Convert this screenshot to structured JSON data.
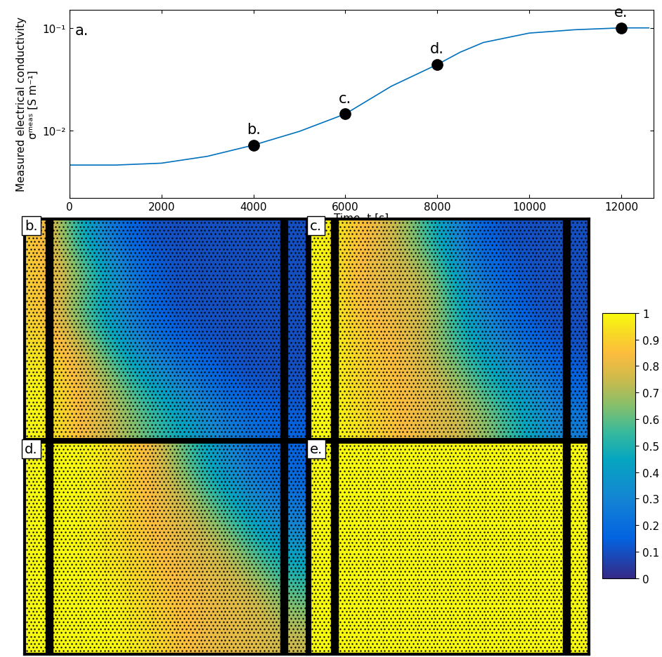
{
  "chart_data": [
    {
      "type": "line",
      "title": "a.",
      "x_label": "Time, t [s]",
      "y_label": "Measured electrical conductivity\nσᵐᵉᵃˢ [S m⁻¹]",
      "x": [
        0,
        1000,
        2000,
        3000,
        4000,
        5000,
        6000,
        7000,
        8000,
        8500,
        9000,
        10000,
        11000,
        12000,
        12600
      ],
      "values": [
        0.0046,
        0.0046,
        0.0048,
        0.0056,
        0.0072,
        0.0098,
        0.0145,
        0.027,
        0.044,
        0.058,
        0.072,
        0.089,
        0.096,
        0.1,
        0.1
      ],
      "color": "#0072bd",
      "log": "y",
      "xlim": [
        0,
        12700
      ],
      "ylim": [
        0.0022,
        0.15
      ],
      "xticks": [
        0,
        2000,
        4000,
        6000,
        8000,
        10000,
        12000
      ],
      "yticks": [
        {
          "value": 0.01,
          "label": "10⁻²"
        },
        {
          "value": 0.1,
          "label": "10⁻¹"
        }
      ],
      "annotations": [
        {
          "text": "b.",
          "x": 4000,
          "y": 0.0072
        },
        {
          "text": "c.",
          "x": 6000,
          "y": 0.0145
        },
        {
          "text": "d.",
          "x": 8000,
          "y": 0.044
        },
        {
          "text": "e.",
          "x": 12000,
          "y": 0.1
        }
      ],
      "marker": "o"
    },
    {
      "type": "heatmap",
      "title": "b.",
      "tick_labels": false,
      "cells": [
        [
          0.9,
          0.5,
          0.2,
          0.1,
          0.1,
          0.1,
          0.1,
          0.1
        ],
        [
          0.9,
          0.7,
          0.4,
          0.15,
          0.1,
          0.1,
          0.1,
          0.1
        ],
        [
          0.9,
          0.6,
          0.35,
          0.15,
          0.1,
          0.1,
          0.1,
          0.1
        ],
        [
          0.95,
          0.8,
          0.5,
          0.25,
          0.15,
          0.1,
          0.1,
          0.1
        ],
        [
          1,
          0.85,
          0.7,
          0.45,
          0.3,
          0.15,
          0.1,
          0.1
        ],
        [
          1,
          0.85,
          0.75,
          0.6,
          0.45,
          0.3,
          0.2,
          0.15
        ]
      ],
      "colorbar_range": [
        0,
        1
      ],
      "colorbar_ticks": [
        0,
        0.1,
        0.2,
        0.3,
        0.4,
        0.5,
        0.6,
        0.7,
        0.8,
        0.9,
        1
      ]
    },
    {
      "type": "heatmap",
      "title": "c.",
      "tick_labels": false,
      "cells": [
        [
          1,
          0.85,
          0.75,
          0.5,
          0.2,
          0.1,
          0.1,
          0.1
        ],
        [
          1,
          0.8,
          0.8,
          0.7,
          0.3,
          0.15,
          0.1,
          0.1
        ],
        [
          1,
          0.85,
          0.8,
          0.75,
          0.4,
          0.2,
          0.1,
          0.1
        ],
        [
          1,
          0.9,
          0.85,
          0.7,
          0.5,
          0.3,
          0.15,
          0.1
        ],
        [
          1,
          0.9,
          0.85,
          0.8,
          0.65,
          0.45,
          0.3,
          0.15
        ],
        [
          1,
          0.95,
          0.85,
          0.8,
          0.75,
          0.6,
          0.4,
          0.25
        ]
      ],
      "colorbar_range": [
        0,
        1
      ],
      "colorbar_ticks": [
        0,
        0.1,
        0.2,
        0.3,
        0.4,
        0.5,
        0.6,
        0.7,
        0.8,
        0.9,
        1
      ]
    },
    {
      "type": "heatmap",
      "title": "d.",
      "tick_labels": false,
      "cells": [
        [
          1,
          1,
          0.95,
          0.85,
          0.6,
          0.35,
          0.2,
          0.15
        ],
        [
          1,
          1,
          0.95,
          0.85,
          0.75,
          0.5,
          0.3,
          0.2
        ],
        [
          1,
          1,
          0.95,
          0.85,
          0.8,
          0.7,
          0.45,
          0.3
        ],
        [
          1,
          1,
          0.95,
          0.9,
          0.8,
          0.8,
          0.65,
          0.45
        ],
        [
          1,
          1,
          1,
          0.9,
          0.85,
          0.8,
          0.8,
          0.6
        ],
        [
          1,
          1,
          1,
          0.95,
          0.85,
          0.8,
          0.8,
          0.75
        ]
      ],
      "colorbar_range": [
        0,
        1
      ],
      "colorbar_ticks": [
        0,
        0.1,
        0.2,
        0.3,
        0.4,
        0.5,
        0.6,
        0.7,
        0.8,
        0.9,
        1
      ]
    },
    {
      "type": "heatmap",
      "title": "e.",
      "tick_labels": false,
      "cells": [
        [
          1,
          1,
          1,
          1,
          1,
          1,
          1,
          1
        ],
        [
          1,
          1,
          1,
          1,
          1,
          1,
          1,
          1
        ],
        [
          1,
          1,
          1,
          1,
          1,
          1,
          1,
          1
        ],
        [
          1,
          1,
          1,
          1,
          1,
          1,
          1,
          1
        ],
        [
          1,
          1,
          1,
          1,
          1,
          1,
          1,
          1
        ],
        [
          1,
          1,
          1,
          1,
          1,
          1,
          1,
          1
        ]
      ],
      "colorbar_range": [
        0,
        1
      ],
      "colorbar_ticks": [
        0,
        0.1,
        0.2,
        0.3,
        0.4,
        0.5,
        0.6,
        0.7,
        0.8,
        0.9,
        1
      ]
    }
  ]
}
